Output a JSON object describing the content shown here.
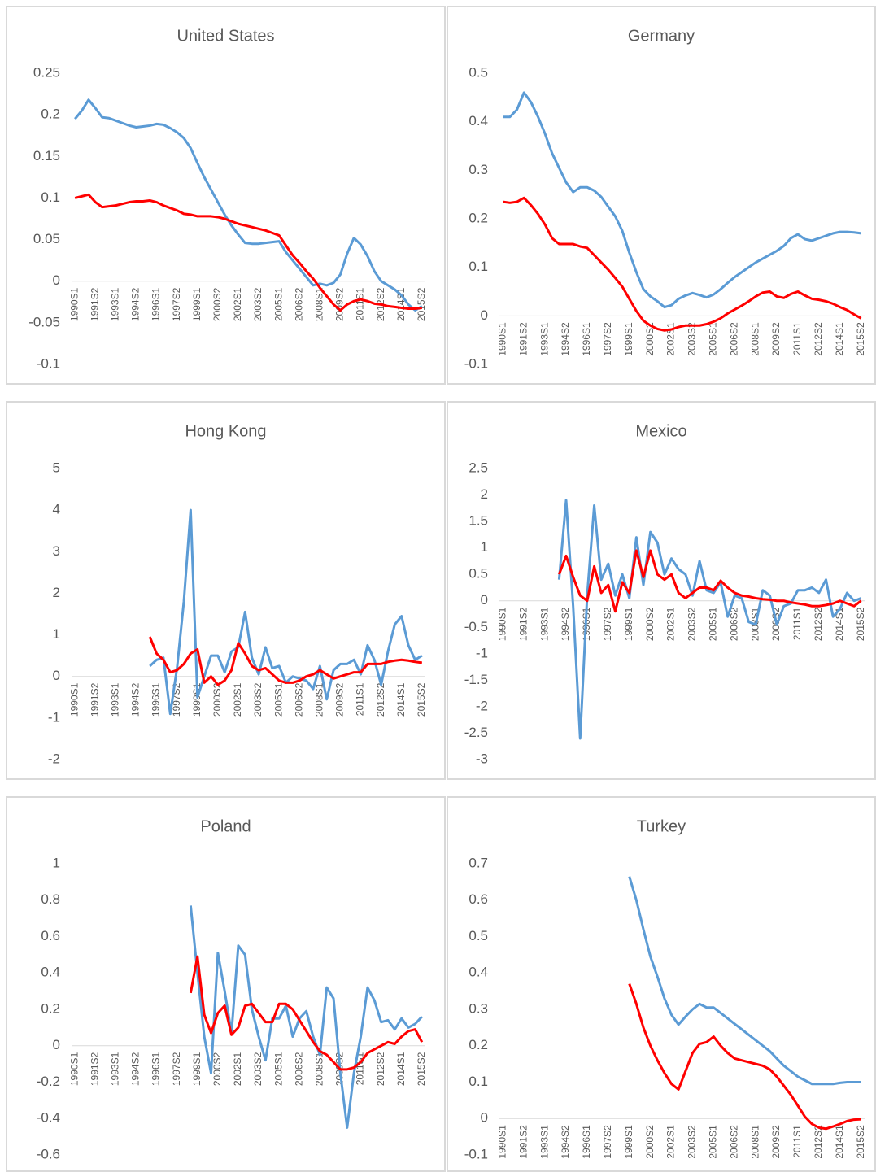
{
  "chart_data": [
    {
      "type": "line",
      "title": "United States",
      "categories": [
        "1990S1",
        null,
        null,
        "1991S2",
        null,
        null,
        "1993S1",
        null,
        null,
        "1994S2",
        null,
        null,
        "1996S1",
        null,
        null,
        "1997S2",
        null,
        null,
        "1999S1",
        null,
        null,
        "2000S2",
        null,
        null,
        "2002S1",
        null,
        null,
        "2003S2",
        null,
        null,
        "2005S1",
        null,
        null,
        "2006S2",
        null,
        null,
        "2008S1",
        null,
        null,
        "2009S2",
        null,
        null,
        "2011S1",
        null,
        null,
        "2012S2",
        null,
        null,
        "2014S1",
        null,
        null,
        "2015S2"
      ],
      "series": [
        {
          "color": "#5b9bd5",
          "values": [
            0.195,
            0.205,
            0.218,
            0.208,
            0.197,
            0.196,
            0.193,
            0.19,
            0.187,
            0.185,
            0.186,
            0.187,
            0.189,
            0.188,
            0.184,
            0.179,
            0.172,
            0.16,
            0.142,
            0.125,
            0.11,
            0.095,
            0.08,
            0.067,
            0.056,
            0.046,
            0.045,
            0.045,
            0.046,
            0.047,
            0.048,
            0.035,
            0.025,
            0.015,
            0.005,
            -0.005,
            -0.003,
            -0.005,
            -0.002,
            0.008,
            0.033,
            0.052,
            0.044,
            0.03,
            0.012,
            0,
            -0.005,
            -0.01,
            -0.017,
            -0.028,
            -0.035,
            -0.03
          ]
        },
        {
          "color": "#ff0000",
          "values": [
            0.1,
            0.102,
            0.104,
            0.095,
            0.089,
            0.09,
            0.091,
            0.093,
            0.095,
            0.096,
            0.096,
            0.097,
            0.095,
            0.091,
            0.088,
            0.085,
            0.081,
            0.08,
            0.078,
            0.078,
            0.078,
            0.077,
            0.075,
            0.072,
            0.069,
            0.067,
            0.065,
            0.063,
            0.061,
            0.058,
            0.055,
            0.043,
            0.031,
            0.022,
            0.012,
            0.003,
            -0.008,
            -0.018,
            -0.028,
            -0.035,
            -0.028,
            -0.024,
            -0.022,
            -0.024,
            -0.027,
            -0.028,
            -0.03,
            -0.031,
            -0.032,
            -0.033,
            -0.033,
            -0.032
          ]
        }
      ],
      "ylim": [
        -0.1,
        0.25
      ],
      "yticks": [
        -0.1,
        -0.05,
        0,
        0.05,
        0.1,
        0.15,
        0.2,
        0.25
      ]
    },
    {
      "type": "line",
      "title": "Germany",
      "categories": [
        "1990S1",
        null,
        null,
        "1991S2",
        null,
        null,
        "1993S1",
        null,
        null,
        "1994S2",
        null,
        null,
        "1996S1",
        null,
        null,
        "1997S2",
        null,
        null,
        "1999S1",
        null,
        null,
        "2000S2",
        null,
        null,
        "2002S1",
        null,
        null,
        "2003S2",
        null,
        null,
        "2005S1",
        null,
        null,
        "2006S2",
        null,
        null,
        "2008S1",
        null,
        null,
        "2009S2",
        null,
        null,
        "2011S1",
        null,
        null,
        "2012S2",
        null,
        null,
        "2014S1",
        null,
        null,
        "2015S2"
      ],
      "series": [
        {
          "color": "#5b9bd5",
          "values": [
            0.41,
            0.41,
            0.425,
            0.46,
            0.44,
            0.41,
            0.375,
            0.335,
            0.305,
            0.275,
            0.255,
            0.265,
            0.265,
            0.258,
            0.245,
            0.225,
            0.205,
            0.175,
            0.13,
            0.09,
            0.055,
            0.04,
            0.03,
            0.018,
            0.022,
            0.035,
            0.042,
            0.047,
            0.043,
            0.038,
            0.044,
            0.055,
            0.068,
            0.08,
            0.09,
            0.1,
            0.11,
            0.118,
            0.126,
            0.134,
            0.144,
            0.16,
            0.168,
            0.158,
            0.155,
            0.16,
            0.165,
            0.17,
            0.173,
            0.173,
            0.172,
            0.17
          ]
        },
        {
          "color": "#ff0000",
          "values": [
            0.235,
            0.233,
            0.235,
            0.243,
            0.228,
            0.21,
            0.188,
            0.16,
            0.148,
            0.148,
            0.148,
            0.143,
            0.14,
            0.125,
            0.11,
            0.095,
            0.078,
            0.06,
            0.035,
            0.01,
            -0.01,
            -0.02,
            -0.027,
            -0.03,
            -0.028,
            -0.023,
            -0.02,
            -0.02,
            -0.02,
            -0.017,
            -0.012,
            -0.005,
            0.005,
            0.013,
            0.021,
            0.03,
            0.04,
            0.048,
            0.05,
            0.04,
            0.037,
            0.045,
            0.05,
            0.042,
            0.035,
            0.033,
            0.03,
            0.025,
            0.018,
            0.012,
            0.003,
            -0.005
          ]
        }
      ],
      "ylim": [
        -0.1,
        0.5
      ],
      "yticks": [
        -0.1,
        0,
        0.1,
        0.2,
        0.3,
        0.4,
        0.5
      ]
    },
    {
      "type": "line",
      "title": "Hong Kong",
      "categories": [
        "1990S1",
        null,
        null,
        "1991S2",
        null,
        null,
        "1993S1",
        null,
        null,
        "1994S2",
        null,
        null,
        "1996S1",
        null,
        null,
        "1997S2",
        null,
        null,
        "1999S1",
        null,
        null,
        "2000S2",
        null,
        null,
        "2002S1",
        null,
        null,
        "2003S2",
        null,
        null,
        "2005S1",
        null,
        null,
        "2006S2",
        null,
        null,
        "2008S1",
        null,
        null,
        "2009S2",
        null,
        null,
        "2011S1",
        null,
        null,
        "2012S2",
        null,
        null,
        "2014S1",
        null,
        null,
        "2015S2"
      ],
      "series": [
        {
          "color": "#5b9bd5",
          "values": [
            null,
            null,
            null,
            null,
            null,
            null,
            null,
            null,
            null,
            null,
            null,
            0.25,
            0.4,
            0.45,
            -0.9,
            0.2,
            1.8,
            4,
            -0.5,
            0,
            0.5,
            0.5,
            0.1,
            0.6,
            0.7,
            1.55,
            0.45,
            0.05,
            0.7,
            0.2,
            0.25,
            -0.15,
            0,
            -0.05,
            -0.1,
            -0.3,
            0.25,
            -0.55,
            0.15,
            0.3,
            0.3,
            0.4,
            0.05,
            0.75,
            0.4,
            -0.2,
            0.6,
            1.25,
            1.45,
            0.75,
            0.4,
            0.5
          ]
        },
        {
          "color": "#ff0000",
          "values": [
            null,
            null,
            null,
            null,
            null,
            null,
            null,
            null,
            null,
            null,
            null,
            0.95,
            0.55,
            0.4,
            0.1,
            0.15,
            0.3,
            0.55,
            0.65,
            -0.15,
            0,
            -0.2,
            -0.1,
            0.15,
            0.8,
            0.55,
            0.25,
            0.15,
            0.2,
            0.05,
            -0.1,
            -0.15,
            -0.15,
            -0.1,
            0,
            0.05,
            0.15,
            0.05,
            -0.05,
            0,
            0.05,
            0.1,
            0.1,
            0.3,
            0.3,
            0.3,
            0.35,
            0.38,
            0.4,
            0.38,
            0.35,
            0.33
          ]
        }
      ],
      "ylim": [
        -2,
        5
      ],
      "yticks": [
        -2,
        -1,
        0,
        1,
        2,
        3,
        4,
        5
      ]
    },
    {
      "type": "line",
      "title": "Mexico",
      "categories": [
        "1990S1",
        null,
        null,
        "1991S2",
        null,
        null,
        "1993S1",
        null,
        null,
        "1994S2",
        null,
        null,
        "1996S1",
        null,
        null,
        "1997S2",
        null,
        null,
        "1999S1",
        null,
        null,
        "2000S2",
        null,
        null,
        "2002S1",
        null,
        null,
        "2003S2",
        null,
        null,
        "2005S1",
        null,
        null,
        "2006S2",
        null,
        null,
        "2008S1",
        null,
        null,
        "2009S2",
        null,
        null,
        "2011S1",
        null,
        null,
        "2012S2",
        null,
        null,
        "2014S1",
        null,
        null,
        "2015S2"
      ],
      "series": [
        {
          "color": "#5b9bd5",
          "values": [
            null,
            null,
            null,
            null,
            null,
            null,
            null,
            null,
            0.4,
            1.9,
            -0.1,
            -2.6,
            0.1,
            1.8,
            0.4,
            0.7,
            0.1,
            0.5,
            0.05,
            1.2,
            0.3,
            1.3,
            1.1,
            0.5,
            0.8,
            0.6,
            0.5,
            0.1,
            0.75,
            0.2,
            0.15,
            0.35,
            -0.3,
            0.1,
            0.05,
            -0.4,
            -0.45,
            0.2,
            0.1,
            -0.45,
            -0.1,
            -0.05,
            0.2,
            0.2,
            0.25,
            0.15,
            0.4,
            -0.3,
            -0.15,
            0.15,
            0,
            0.05
          ]
        },
        {
          "color": "#ff0000",
          "values": [
            null,
            null,
            null,
            null,
            null,
            null,
            null,
            null,
            0.5,
            0.85,
            0.45,
            0.1,
            0,
            0.65,
            0.15,
            0.3,
            -0.2,
            0.35,
            0.15,
            0.95,
            0.45,
            0.95,
            0.5,
            0.4,
            0.5,
            0.15,
            0.05,
            0.15,
            0.25,
            0.25,
            0.2,
            0.38,
            0.25,
            0.15,
            0.1,
            0.08,
            0.05,
            0.03,
            0.02,
            0,
            0,
            -0.03,
            -0.05,
            -0.07,
            -0.1,
            -0.1,
            -0.08,
            -0.05,
            0,
            -0.05,
            -0.1,
            0
          ]
        }
      ],
      "ylim": [
        -3,
        2.5
      ],
      "yticks": [
        -3,
        -2.5,
        -2,
        -1.5,
        -1,
        -0.5,
        0,
        0.5,
        1,
        1.5,
        2,
        2.5
      ]
    },
    {
      "type": "line",
      "title": "Poland",
      "categories": [
        "1990S1",
        null,
        null,
        "1991S2",
        null,
        null,
        "1993S1",
        null,
        null,
        "1994S2",
        null,
        null,
        "1996S1",
        null,
        null,
        "1997S2",
        null,
        null,
        "1999S1",
        null,
        null,
        "2000S2",
        null,
        null,
        "2002S1",
        null,
        null,
        "2003S2",
        null,
        null,
        "2005S1",
        null,
        null,
        "2006S2",
        null,
        null,
        "2008S1",
        null,
        null,
        "2009S2",
        null,
        null,
        "2011S1",
        null,
        null,
        "2012S2",
        null,
        null,
        "2014S1",
        null,
        null,
        "2015S2"
      ],
      "series": [
        {
          "color": "#5b9bd5",
          "values": [
            null,
            null,
            null,
            null,
            null,
            null,
            null,
            null,
            null,
            null,
            null,
            null,
            null,
            null,
            null,
            null,
            null,
            0.77,
            0.4,
            0.05,
            -0.15,
            0.51,
            0.3,
            0.07,
            0.55,
            0.5,
            0.2,
            0.05,
            -0.08,
            0.15,
            0.15,
            0.22,
            0.05,
            0.15,
            0.19,
            0.05,
            -0.05,
            0.32,
            0.26,
            -0.15,
            -0.45,
            -0.15,
            0.05,
            0.32,
            0.25,
            0.13,
            0.14,
            0.09,
            0.15,
            0.1,
            0.12,
            0.16
          ]
        },
        {
          "color": "#ff0000",
          "values": [
            null,
            null,
            null,
            null,
            null,
            null,
            null,
            null,
            null,
            null,
            null,
            null,
            null,
            null,
            null,
            null,
            null,
            0.29,
            0.49,
            0.17,
            0.07,
            0.18,
            0.22,
            0.06,
            0.1,
            0.22,
            0.23,
            0.18,
            0.13,
            0.13,
            0.23,
            0.23,
            0.2,
            0.14,
            0.08,
            0.02,
            -0.03,
            -0.05,
            -0.09,
            -0.13,
            -0.13,
            -0.12,
            -0.09,
            -0.04,
            -0.02,
            0,
            0.02,
            0.01,
            0.05,
            0.08,
            0.09,
            0.02
          ]
        }
      ],
      "ylim": [
        -0.6,
        1
      ],
      "yticks": [
        -0.6,
        -0.4,
        -0.2,
        0,
        0.2,
        0.4,
        0.6,
        0.8,
        1
      ]
    },
    {
      "type": "line",
      "title": "Turkey",
      "categories": [
        "1990S1",
        null,
        null,
        "1991S2",
        null,
        null,
        "1993S1",
        null,
        null,
        "1994S2",
        null,
        null,
        "1996S1",
        null,
        null,
        "1997S2",
        null,
        null,
        "1999S1",
        null,
        null,
        "2000S2",
        null,
        null,
        "2002S1",
        null,
        null,
        "2003S2",
        null,
        null,
        "2005S1",
        null,
        null,
        "2006S2",
        null,
        null,
        "2008S1",
        null,
        null,
        "2009S2",
        null,
        null,
        "2011S1",
        null,
        null,
        "2012S2",
        null,
        null,
        "2014S1",
        null,
        null,
        "2015S2"
      ],
      "series": [
        {
          "color": "#5b9bd5",
          "values": [
            null,
            null,
            null,
            null,
            null,
            null,
            null,
            null,
            null,
            null,
            null,
            null,
            null,
            null,
            null,
            null,
            null,
            null,
            0.665,
            0.6,
            0.52,
            0.445,
            0.39,
            0.33,
            0.285,
            0.258,
            0.28,
            0.3,
            0.315,
            0.305,
            0.305,
            0.29,
            0.275,
            0.26,
            0.245,
            0.23,
            0.215,
            0.2,
            0.185,
            0.165,
            0.145,
            0.13,
            0.115,
            0.105,
            0.095,
            0.095,
            0.095,
            0.095,
            0.098,
            0.1,
            0.1,
            0.1
          ]
        },
        {
          "color": "#ff0000",
          "values": [
            null,
            null,
            null,
            null,
            null,
            null,
            null,
            null,
            null,
            null,
            null,
            null,
            null,
            null,
            null,
            null,
            null,
            null,
            0.37,
            0.315,
            0.25,
            0.2,
            0.16,
            0.125,
            0.095,
            0.08,
            0.13,
            0.18,
            0.205,
            0.21,
            0.225,
            0.2,
            0.18,
            0.165,
            0.16,
            0.155,
            0.15,
            0.145,
            0.135,
            0.115,
            0.09,
            0.065,
            0.035,
            0.005,
            -0.015,
            -0.025,
            -0.028,
            -0.022,
            -0.015,
            -0.007,
            -0.003,
            -0.002
          ]
        }
      ],
      "ylim": [
        -0.1,
        0.7
      ],
      "yticks": [
        -0.1,
        0,
        0.1,
        0.2,
        0.3,
        0.4,
        0.5,
        0.6,
        0.7
      ]
    }
  ]
}
